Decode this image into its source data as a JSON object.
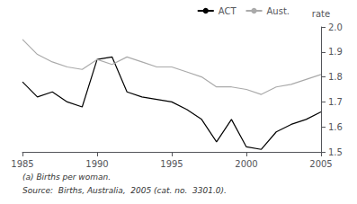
{
  "chart_data": {
    "type": "line",
    "y_label": "rate",
    "annotations": [
      "(a) Births per woman.",
      "Source:  Births, Australia,  2005 (cat. no.  3301.0)."
    ],
    "x": [
      1985,
      1986,
      1987,
      1988,
      1989,
      1990,
      1991,
      1992,
      1993,
      1994,
      1995,
      1996,
      1997,
      1998,
      1999,
      2000,
      2001,
      2002,
      2003,
      2004,
      2005
    ],
    "series": [
      {
        "name": "ACT",
        "color": "#000000",
        "values": [
          1.78,
          1.72,
          1.74,
          1.7,
          1.68,
          1.87,
          1.88,
          1.74,
          1.72,
          1.71,
          1.7,
          1.67,
          1.63,
          1.54,
          1.63,
          1.52,
          1.51,
          1.58,
          1.61,
          1.63,
          1.66
        ]
      },
      {
        "name": "Aust.",
        "color": "#aaaaaa",
        "values": [
          1.95,
          1.89,
          1.86,
          1.84,
          1.83,
          1.87,
          1.85,
          1.88,
          1.86,
          1.84,
          1.84,
          1.82,
          1.8,
          1.76,
          1.76,
          1.75,
          1.73,
          1.76,
          1.77,
          1.79,
          1.81
        ]
      }
    ],
    "xlim": [
      1985,
      2005
    ],
    "xticks": [
      1985,
      1990,
      1995,
      2000,
      2005
    ],
    "ylim": [
      1.5,
      2.0
    ],
    "yticks": [
      1.5,
      1.6,
      1.7,
      1.8,
      1.9,
      {
        "value": 2.0,
        "label": "2.0"
      }
    ],
    "grid": false,
    "legend": "upper right"
  }
}
